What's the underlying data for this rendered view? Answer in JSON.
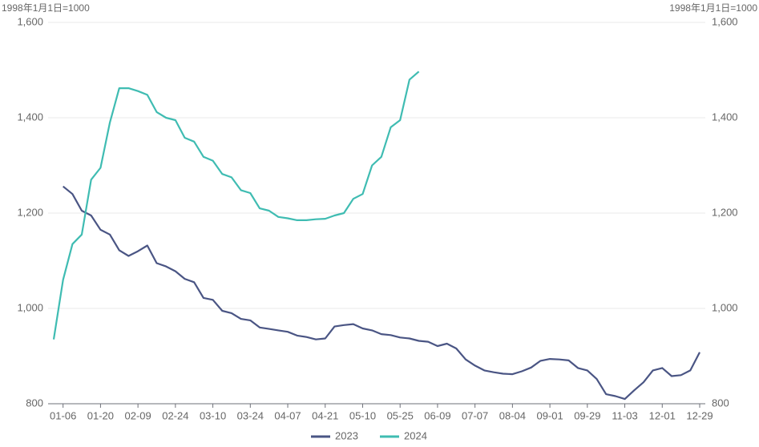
{
  "chart_data": {
    "type": "line",
    "y_axis_label": "1998年1月1日=1000",
    "y2_axis_label": "1998年1月1日=1000",
    "categories": [
      null,
      "01-06",
      null,
      null,
      null,
      "01-20",
      null,
      null,
      null,
      "02-09",
      null,
      null,
      null,
      "02-24",
      null,
      null,
      null,
      "03-10",
      null,
      null,
      null,
      "03-24",
      null,
      null,
      null,
      "04-07",
      null,
      null,
      null,
      "04-21",
      null,
      null,
      null,
      "05-10",
      null,
      null,
      null,
      "05-25",
      null,
      null,
      null,
      "06-09",
      null,
      null,
      null,
      "07-07",
      null,
      null,
      null,
      "08-04",
      null,
      null,
      null,
      "09-01",
      null,
      null,
      null,
      "09-29",
      null,
      null,
      null,
      "11-03",
      null,
      null,
      null,
      "12-01",
      null,
      null,
      null,
      "12-29"
    ],
    "series": [
      {
        "name": "2023",
        "color": "#4a5584",
        "values": [
          null,
          1256,
          1240,
          1205,
          1195,
          1165,
          1155,
          1122,
          1110,
          1120,
          1132,
          1095,
          1088,
          1078,
          1062,
          1055,
          1022,
          1018,
          995,
          990,
          978,
          975,
          960,
          957,
          954,
          951,
          943,
          940,
          935,
          937,
          962,
          965,
          967,
          958,
          954,
          946,
          944,
          939,
          937,
          932,
          930,
          921,
          926,
          916,
          893,
          880,
          870,
          866,
          863,
          862,
          868,
          876,
          890,
          894,
          893,
          891,
          875,
          870,
          852,
          820,
          816,
          810,
          828,
          845,
          870,
          875,
          858,
          860,
          870,
          908
        ]
      },
      {
        "name": "2024",
        "color": "#3fbcb2",
        "values": [
          935,
          1060,
          1135,
          1155,
          1270,
          1295,
          1390,
          1462,
          1462,
          1456,
          1448,
          1412,
          1400,
          1395,
          1358,
          1350,
          1318,
          1310,
          1282,
          1275,
          1248,
          1242,
          1210,
          1205,
          1192,
          1189,
          1185,
          1185,
          1187,
          1188,
          1195,
          1200,
          1230,
          1240,
          1300,
          1318,
          1380,
          1395,
          1480,
          1497,
          null,
          null,
          null,
          null,
          null,
          null,
          null,
          null,
          null,
          null,
          null,
          null,
          null,
          null,
          null,
          null,
          null,
          null,
          null,
          null,
          null,
          null,
          null,
          null,
          null,
          null,
          null,
          null,
          null,
          null
        ]
      }
    ],
    "ylim": [
      800,
      1600
    ],
    "yticks": [
      {
        "value": 800,
        "label": "800"
      },
      {
        "value": 1000,
        "label": "1,000"
      },
      {
        "value": 1200,
        "label": "1,200"
      },
      {
        "value": 1400,
        "label": "1,400"
      },
      {
        "value": 1600,
        "label": "1,600"
      }
    ],
    "y2lim": [
      800,
      1600
    ],
    "y2ticks": [
      {
        "value": 800,
        "label": "800"
      },
      {
        "value": 1000,
        "label": "1,000"
      },
      {
        "value": 1200,
        "label": "1,200"
      },
      {
        "value": 1400,
        "label": "1,400"
      },
      {
        "value": 1600,
        "label": "1,600"
      }
    ],
    "grid": true
  }
}
